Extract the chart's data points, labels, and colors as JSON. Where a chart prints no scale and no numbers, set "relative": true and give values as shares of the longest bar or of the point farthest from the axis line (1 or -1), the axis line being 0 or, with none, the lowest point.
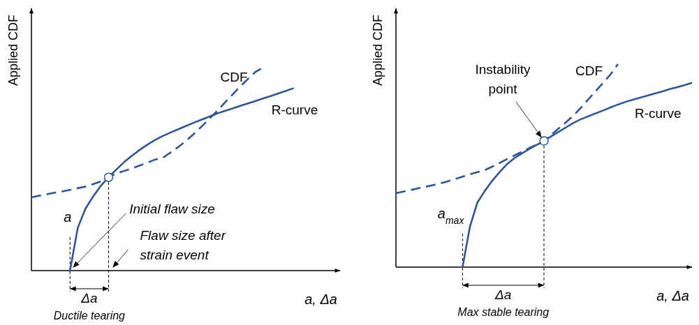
{
  "chart_data": [
    {
      "type": "line",
      "relative": true,
      "ylabel": "Applied CDF",
      "xlabel": "a, Δa",
      "categories": [
        null,
        null,
        null,
        null,
        null,
        null,
        null,
        null,
        null,
        null,
        null,
        null,
        null,
        null,
        null,
        null,
        null,
        null,
        null,
        null,
        null,
        null,
        null,
        null,
        null,
        null,
        null,
        null,
        null,
        null,
        null,
        null,
        null,
        null,
        null,
        null,
        null,
        null,
        null,
        null,
        null
      ],
      "series": [
        {
          "name": "R-curve",
          "color": "#2f5597",
          "line_style": "solid",
          "values": [
            null,
            null,
            null,
            null,
            null,
            0,
            0.21,
            0.305,
            0.365,
            0.418,
            0.46,
            0.498,
            0.534,
            0.565,
            0.594,
            0.62,
            0.643,
            0.663,
            0.68,
            0.696,
            0.712,
            0.728,
            0.743,
            0.758,
            0.773,
            0.786,
            0.798,
            0.811,
            0.823,
            0.835,
            0.848,
            0.86,
            0.873,
            0.886,
            0.899,
            null,
            null,
            null,
            null,
            null,
            null
          ]
        },
        {
          "name": "CDF",
          "color": "#2f5597",
          "line_style": "dashed",
          "values": [
            0.361,
            0.369,
            0.376,
            0.384,
            0.39,
            0.398,
            0.406,
            0.414,
            0.426,
            0.439,
            0.46,
            0.478,
            0.491,
            0.503,
            0.517,
            0.531,
            0.547,
            0.555,
            0.581,
            0.608,
            0.638,
            0.672,
            0.708,
            0.746,
            0.784,
            0.825,
            0.865,
            0.905,
            0.942,
            0.978,
            1,
            null,
            null,
            null,
            null,
            null,
            null,
            null,
            null,
            null,
            null
          ]
        }
      ],
      "annotations": [
        "a",
        "Initial flaw size",
        "Flaw size after strain event",
        "Δa",
        "Ductile tearing"
      ]
    },
    {
      "type": "line",
      "relative": true,
      "ylabel": "Applied CDF",
      "xlabel": "a, Δa",
      "categories": [
        null,
        null,
        null,
        null,
        null,
        null,
        null,
        null,
        null,
        null,
        null,
        null,
        null,
        null,
        null,
        null,
        null,
        null,
        null,
        null,
        null,
        null,
        null,
        null,
        null,
        null,
        null,
        null,
        null,
        null,
        null,
        null,
        null,
        null,
        null,
        null,
        null,
        null,
        null,
        null,
        null
      ],
      "series": [
        {
          "name": "R-curve",
          "color": "#2f5597",
          "line_style": "solid",
          "values": [
            null,
            null,
            null,
            null,
            null,
            null,
            null,
            null,
            null,
            0,
            0.2,
            0.318,
            0.375,
            0.425,
            0.468,
            0.507,
            0.537,
            0.56,
            0.582,
            0.602,
            0.622,
            0.645,
            0.667,
            0.689,
            0.711,
            0.729,
            0.743,
            0.758,
            0.772,
            0.787,
            0.801,
            0.814,
            0.825,
            0.835,
            0.845,
            0.856,
            0.866,
            0.877,
            0.887,
            0.897,
            0.908
          ]
        },
        {
          "name": "CDF",
          "color": "#2f5597",
          "line_style": "dashed",
          "values": [
            0.364,
            0.372,
            0.38,
            0.388,
            0.396,
            0.404,
            0.412,
            0.423,
            0.434,
            0.446,
            0.457,
            0.468,
            0.478,
            0.495,
            0.513,
            0.532,
            0.55,
            0.568,
            0.586,
            0.604,
            0.622,
            0.653,
            0.684,
            0.715,
            0.747,
            0.786,
            0.827,
            0.868,
            0.909,
            0.95,
            1,
            null,
            null,
            null,
            null,
            null,
            null,
            null,
            null,
            null,
            null
          ]
        }
      ],
      "annotations": [
        "a$_{max}$",
        "Instability point",
        "Δa",
        "Max stable tearing"
      ]
    }
  ]
}
